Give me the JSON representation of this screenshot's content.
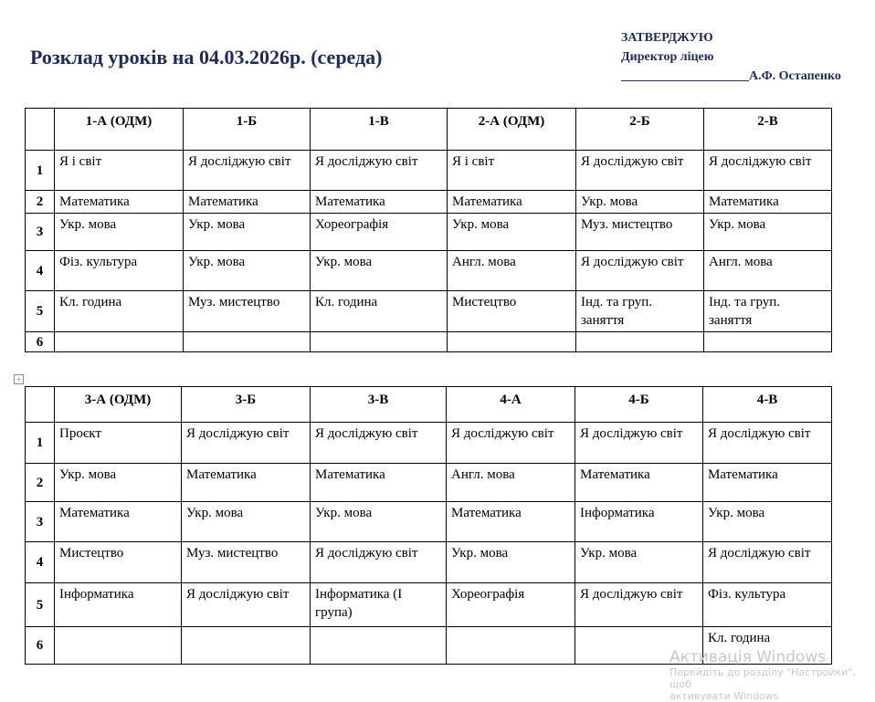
{
  "title": "Розклад уроків на 04.03.2026р. (середа)",
  "approval": {
    "line1": "ЗАТВЕРДЖУЮ",
    "line2": "Директор ліцею",
    "line3": "____________________А.Ф. Остапенко"
  },
  "table1": {
    "headers": [
      "",
      "1-А (ОДМ)",
      "1-Б",
      "1-В",
      "2-А (ОДМ)",
      "2-Б",
      "2-В"
    ],
    "rows": [
      [
        "1",
        "Я і світ",
        "Я досліджую світ",
        "Я досліджую світ",
        "Я і світ",
        "Я досліджую світ",
        "Я досліджую світ"
      ],
      [
        "2",
        "Математика",
        "Математика",
        "Математика",
        "Математика",
        "Укр. мова",
        "Математика"
      ],
      [
        "3",
        "Укр. мова",
        "Укр. мова",
        "Хореографія",
        "Укр. мова",
        "Муз. мистецтво",
        "Укр. мова"
      ],
      [
        "4",
        "Фіз. культура",
        "Укр. мова",
        "Укр. мова",
        "Англ. мова",
        "Я досліджую світ",
        "Англ. мова"
      ],
      [
        "5",
        "Кл. година",
        "Муз. мистецтво",
        "Кл. година",
        "Мистецтво",
        "Інд. та груп. заняття",
        "Інд. та груп. заняття"
      ],
      [
        "6",
        "",
        "",
        "",
        "",
        "",
        ""
      ]
    ]
  },
  "table2": {
    "headers": [
      "",
      "3-А (ОДМ)",
      "3-Б",
      "3-В",
      "4-А",
      "4-Б",
      "4-В"
    ],
    "rows": [
      [
        "1",
        "Проєкт",
        "Я досліджую світ",
        "Я досліджую світ",
        "Я досліджую світ",
        "Я досліджую світ",
        "Я досліджую світ"
      ],
      [
        "2",
        "Укр. мова",
        "Математика",
        "Математика",
        "Англ. мова",
        "Математика",
        "Математика"
      ],
      [
        "3",
        "Математика",
        "Укр. мова",
        "Укр. мова",
        "Математика",
        "Інформатика",
        "Укр. мова"
      ],
      [
        "4",
        "Мистецтво",
        "Муз. мистецтво",
        "Я досліджую світ",
        "Укр. мова",
        "Укр. мова",
        "Я досліджую світ"
      ],
      [
        "5",
        "Інформатика",
        "Я досліджую світ",
        "Інформатика (І група)",
        "Хореографія",
        "Я досліджую світ",
        "Фіз. культура"
      ],
      [
        "6",
        "",
        "",
        "",
        "",
        "",
        "Кл. година"
      ]
    ]
  },
  "watermark": {
    "line1": "Активація Windows",
    "line2": "Перейдіть до розділу \"Настройки\", щоб",
    "line3": "активувати Windows"
  }
}
